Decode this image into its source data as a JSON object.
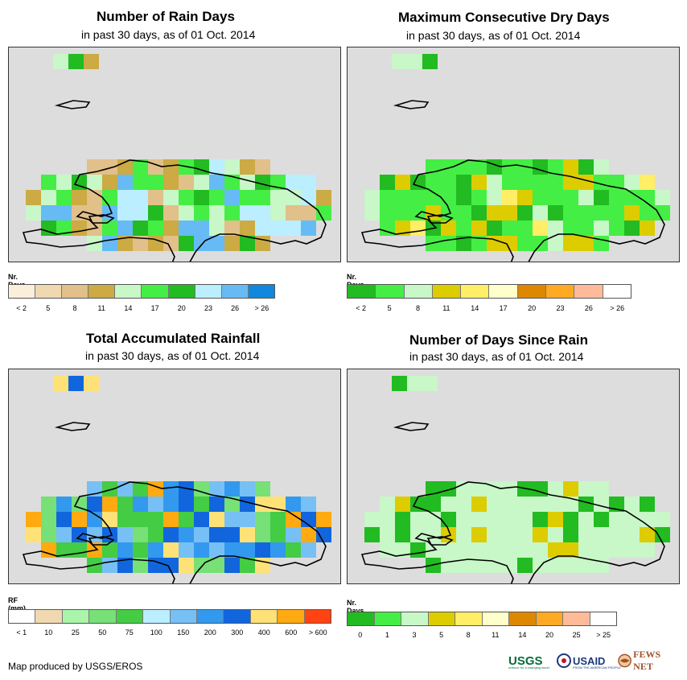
{
  "panels": [
    {
      "title": "Number of Rain Days",
      "subtitle": "in past 30 days, as of 01 Oct. 2014",
      "legend_title": "Nr. Days",
      "legend_colors": [
        "#fbefdc",
        "#f0d8b0",
        "#e2c08a",
        "#ccaa44",
        "#c8f7c8",
        "#44ee44",
        "#22bb22",
        "#bbeeff",
        "#66bbf5",
        "#1188dd"
      ],
      "legend_labels": [
        "< 2",
        "5",
        "8",
        "11",
        "14",
        "17",
        "20",
        "23",
        "26",
        "> 26"
      ]
    },
    {
      "title": "Maximum Consecutive Dry Days",
      "subtitle": "in past 30 days, as of 01 Oct. 2014",
      "legend_title": "Nr. Days",
      "legend_colors": [
        "#22bb22",
        "#44ee44",
        "#c8f7c8",
        "#ddcc00",
        "#ffee66",
        "#ffffcc",
        "#dd8800",
        "#ffaa22",
        "#ffbb99",
        "#ffffff"
      ],
      "legend_labels": [
        "< 2",
        "5",
        "8",
        "11",
        "14",
        "17",
        "20",
        "23",
        "26",
        "> 26"
      ]
    },
    {
      "title": "Total Accumulated Rainfall",
      "subtitle": "in past 30 days, as of 01 Oct. 2014",
      "legend_title": "RF (mm)",
      "legend_colors": [
        "#ffffff",
        "#f0d8b0",
        "#aaf5aa",
        "#77e077",
        "#44cc44",
        "#bbeeff",
        "#77c0f5",
        "#3399ee",
        "#1166dd",
        "#ffe277",
        "#ffaa11",
        "#ff4411"
      ],
      "legend_labels": [
        "< 1",
        "10",
        "25",
        "50",
        "75",
        "100",
        "150",
        "200",
        "300",
        "400",
        "600",
        "> 600"
      ]
    },
    {
      "title": "Number of Days Since Rain",
      "subtitle": "in past 30 days, as of 01 Oct. 2014",
      "legend_title": "Nr. Days",
      "legend_colors": [
        "#22bb22",
        "#44ee44",
        "#c8f7c8",
        "#ddcc00",
        "#ffee66",
        "#ffffcc",
        "#dd8800",
        "#ffaa22",
        "#ffbb99",
        "#ffffff"
      ],
      "legend_labels": [
        "0",
        "1",
        "3",
        "5",
        "8",
        "11",
        "14",
        "20",
        "25",
        "> 25"
      ]
    }
  ],
  "footer": "Map produced by USGS/EROS",
  "logos": {
    "usgs": "USGS",
    "usgs_tagline": "science for a changing world",
    "usaid": "USAID",
    "usaid_tagline": "FROM THE AMERICAN PEOPLE",
    "fewsnet": "FEWS NET"
  }
}
